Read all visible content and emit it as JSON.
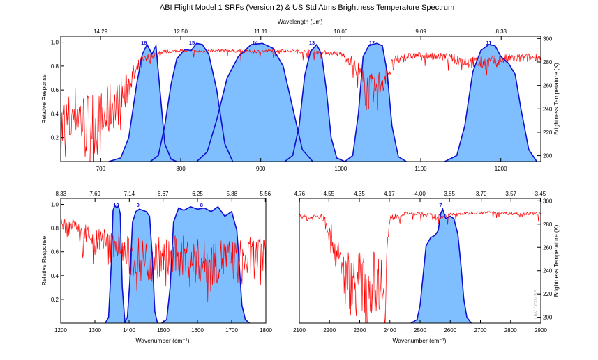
{
  "title": "ABI Flight Model 1 SRFs (Version 2) & US Std Atms Brightness Temperature Spectrum",
  "watermark": "UW / CIMSS",
  "colors": {
    "srf_fill": "#7fbfff",
    "srf_line": "#1010d0",
    "bt_line": "#ff0000",
    "band_label": "#1010d0"
  },
  "chart_data": [
    {
      "type": "area",
      "panel": "top",
      "xlabel": "",
      "top_xlabel": "Wavelength (μm)",
      "ylabel": "Relative Response",
      "y2label": "Brightness Temperature (K)",
      "xlim": [
        650,
        1250
      ],
      "ylim": [
        0,
        1.05
      ],
      "y2lim": [
        195,
        302
      ],
      "x_ticks": [
        700,
        800,
        900,
        1000,
        1100,
        1200
      ],
      "x_tick_labels": [
        "700",
        "800",
        "900",
        "1000",
        "1100",
        "1200"
      ],
      "top_ticks": [
        699.8,
        800,
        900.1,
        1000,
        1100.1,
        1200.5
      ],
      "top_tick_labels": [
        "14.29",
        "12.50",
        "11.11",
        "10.00",
        "9.09",
        "8.33"
      ],
      "y_ticks": [
        0.2,
        0.4,
        0.6,
        0.8,
        1.0
      ],
      "y_tick_labels": [
        "0.2",
        "0.4",
        "0.6",
        "0.8",
        "1.0"
      ],
      "y2_ticks": [
        200,
        220,
        240,
        260,
        280,
        300
      ],
      "y2_tick_labels": [
        "200",
        "220",
        "240",
        "260",
        "280",
        "300"
      ],
      "series": [
        {
          "band": "16",
          "x": [
            710,
            725,
            735,
            745,
            752,
            758,
            764,
            769,
            774,
            780,
            788,
            795
          ],
          "values": [
            0,
            0.03,
            0.2,
            0.65,
            0.9,
            0.98,
            0.9,
            0.97,
            0.6,
            0.15,
            0.02,
            0
          ]
        },
        {
          "band": "15",
          "x": [
            762,
            772,
            780,
            788,
            795,
            805,
            813,
            820,
            827,
            835,
            845,
            855,
            865
          ],
          "values": [
            0,
            0.05,
            0.3,
            0.65,
            0.86,
            0.94,
            0.93,
            0.99,
            0.98,
            0.9,
            0.6,
            0.15,
            0
          ]
        },
        {
          "band": "14",
          "x": [
            820,
            833,
            845,
            858,
            872,
            888,
            902,
            915,
            928,
            940,
            952,
            965
          ],
          "values": [
            0,
            0.08,
            0.35,
            0.7,
            0.88,
            0.98,
            0.99,
            0.95,
            0.8,
            0.45,
            0.1,
            0
          ]
        },
        {
          "band": "13",
          "x": [
            930,
            940,
            948,
            955,
            962,
            970,
            976,
            982,
            988,
            995,
            1005
          ],
          "values": [
            0,
            0.05,
            0.3,
            0.72,
            0.92,
            0.98,
            0.9,
            0.6,
            0.2,
            0.03,
            0
          ]
        },
        {
          "band": "12",
          "x": [
            1005,
            1015,
            1022,
            1028,
            1035,
            1045,
            1052,
            1058,
            1064,
            1072,
            1082
          ],
          "values": [
            0,
            0.05,
            0.4,
            0.88,
            0.97,
            0.99,
            0.97,
            0.75,
            0.3,
            0.04,
            0
          ]
        },
        {
          "band": "11",
          "x": [
            1130,
            1145,
            1155,
            1165,
            1175,
            1185,
            1193,
            1200,
            1210,
            1218,
            1225,
            1235,
            1245
          ],
          "values": [
            0,
            0.05,
            0.3,
            0.75,
            0.93,
            0.98,
            0.97,
            0.88,
            0.82,
            0.73,
            0.45,
            0.1,
            0
          ]
        }
      ],
      "band_labels": [
        {
          "text": "16",
          "x": 754
        },
        {
          "text": "15",
          "x": 814
        },
        {
          "text": "14",
          "x": 893
        },
        {
          "text": "13",
          "x": 964
        },
        {
          "text": "12",
          "x": 1039
        },
        {
          "text": "11",
          "x": 1185
        }
      ],
      "bt_spectrum": {
        "x": [
          650,
          660,
          670,
          680,
          690,
          700,
          705,
          710,
          715,
          720,
          725,
          730,
          735,
          740,
          745,
          750,
          760,
          770,
          780,
          790,
          800,
          820,
          850,
          880,
          900,
          920,
          950,
          980,
          1000,
          1010,
          1020,
          1030,
          1040,
          1050,
          1060,
          1070,
          1080,
          1100,
          1120,
          1140,
          1160,
          1180,
          1200,
          1220,
          1250
        ],
        "values": [
          222,
          226,
          240,
          224,
          230,
          225,
          232,
          238,
          245,
          240,
          255,
          250,
          262,
          266,
          272,
          278,
          284,
          287,
          289,
          289,
          290,
          289,
          290,
          289,
          289,
          290,
          289,
          288,
          287,
          282,
          275,
          258,
          252,
          262,
          272,
          281,
          284,
          286,
          285,
          283,
          280,
          279,
          282,
          283,
          284
        ]
      }
    },
    {
      "type": "area",
      "panel": "bottom-left",
      "xlabel": "Wavenumber (cm⁻¹)",
      "ylabel": "Relative Response",
      "xlim": [
        1200,
        1800
      ],
      "ylim": [
        0,
        1.05
      ],
      "y2lim": [
        195,
        302
      ],
      "x_ticks": [
        1200,
        1300,
        1400,
        1500,
        1600,
        1700,
        1800
      ],
      "x_tick_labels": [
        "1200",
        "1300",
        "1400",
        "1500",
        "1600",
        "1700",
        "1800"
      ],
      "top_ticks": [
        1200.5,
        1300.4,
        1400.6,
        1499.3,
        1600,
        1700.7,
        1798.6
      ],
      "top_tick_labels": [
        "8.33",
        "7.69",
        "7.14",
        "6.67",
        "6.25",
        "5.88",
        "5.56"
      ],
      "y_ticks": [
        0.2,
        0.4,
        0.6,
        0.8,
        1.0
      ],
      "y_tick_labels": [
        "0.2",
        "0.4",
        "0.6",
        "0.8",
        "1.0"
      ],
      "series": [
        {
          "band": "10",
          "x": [
            1330,
            1340,
            1348,
            1353,
            1358,
            1364,
            1369,
            1374,
            1380,
            1388
          ],
          "values": [
            0,
            0.05,
            0.5,
            0.95,
            0.99,
            0.97,
            0.99,
            0.92,
            0.3,
            0
          ]
        },
        {
          "band": "9",
          "x": [
            1385,
            1395,
            1402,
            1410,
            1420,
            1430,
            1440,
            1450,
            1460,
            1468,
            1475,
            1483
          ],
          "values": [
            0,
            0.05,
            0.35,
            0.85,
            0.94,
            0.96,
            0.95,
            0.94,
            0.9,
            0.55,
            0.1,
            0
          ]
        },
        {
          "band": "8",
          "x": [
            1495,
            1510,
            1520,
            1530,
            1545,
            1560,
            1580,
            1600,
            1620,
            1640,
            1660,
            1680,
            1700,
            1715,
            1722,
            1730,
            1740,
            1752
          ],
          "values": [
            0,
            0.03,
            0.3,
            0.85,
            0.97,
            0.95,
            0.98,
            0.96,
            0.97,
            0.94,
            0.98,
            0.9,
            0.94,
            0.78,
            0.5,
            0.15,
            0.03,
            0
          ]
        }
      ],
      "band_labels": [
        {
          "text": "10",
          "x": 1362
        },
        {
          "text": "9",
          "x": 1426
        },
        {
          "text": "8",
          "x": 1612
        }
      ],
      "bt_spectrum": {
        "x": [
          1200,
          1220,
          1240,
          1260,
          1280,
          1300,
          1320,
          1340,
          1360,
          1380,
          1400,
          1430,
          1460,
          1490,
          1520,
          1550,
          1580,
          1610,
          1640,
          1670,
          1700,
          1730,
          1760,
          1800
        ],
        "values": [
          283,
          275,
          282,
          268,
          276,
          262,
          270,
          258,
          266,
          255,
          252,
          250,
          248,
          252,
          250,
          254,
          250,
          248,
          246,
          250,
          248,
          247,
          251,
          253
        ]
      }
    },
    {
      "type": "area",
      "panel": "bottom-right",
      "xlabel": "Wavenumber (cm⁻¹)",
      "y2label": "Brightness Temperature (K)",
      "xlim": [
        2100,
        2900
      ],
      "ylim": [
        0,
        1.05
      ],
      "y2lim": [
        195,
        302
      ],
      "x_ticks": [
        2100,
        2200,
        2300,
        2400,
        2500,
        2600,
        2700,
        2800,
        2900
      ],
      "x_tick_labels": [
        "2100",
        "2200",
        "2300",
        "2400",
        "2500",
        "2600",
        "2700",
        "2800",
        "2900"
      ],
      "top_ticks": [
        2100.8,
        2197.8,
        2298.9,
        2398.1,
        2500,
        2597.4,
        2702.7,
        2801.1,
        2898.6
      ],
      "top_tick_labels": [
        "4.76",
        "4.55",
        "4.35",
        "4.17",
        "4.00",
        "3.85",
        "3.70",
        "3.57",
        "3.45"
      ],
      "y2_ticks": [
        200,
        220,
        240,
        260,
        280,
        300
      ],
      "y2_tick_labels": [
        "200",
        "220",
        "240",
        "260",
        "280",
        "300"
      ],
      "series": [
        {
          "band": "7",
          "x": [
            2470,
            2490,
            2500,
            2510,
            2520,
            2535,
            2550,
            2560,
            2568,
            2575,
            2585,
            2600,
            2612,
            2625,
            2635,
            2645,
            2655,
            2670
          ],
          "values": [
            0,
            0.03,
            0.15,
            0.4,
            0.65,
            0.72,
            0.74,
            0.78,
            0.92,
            0.96,
            0.88,
            0.9,
            0.88,
            0.75,
            0.5,
            0.2,
            0.05,
            0
          ]
        }
      ],
      "band_labels": [
        {
          "text": "7",
          "x": 2568
        }
      ],
      "bt_spectrum": {
        "x": [
          2100,
          2130,
          2160,
          2185,
          2200,
          2215,
          2230,
          2250,
          2275,
          2300,
          2325,
          2350,
          2370,
          2380,
          2385,
          2390,
          2395,
          2400,
          2420,
          2450,
          2500,
          2550,
          2600,
          2650,
          2700,
          2750,
          2800,
          2850,
          2900
        ],
        "values": [
          288,
          285,
          287,
          284,
          275,
          262,
          245,
          235,
          228,
          230,
          226,
          229,
          232,
          225,
          222,
          250,
          272,
          284,
          287,
          289,
          289,
          286,
          288,
          289,
          290,
          290,
          289,
          289,
          289
        ]
      }
    }
  ]
}
